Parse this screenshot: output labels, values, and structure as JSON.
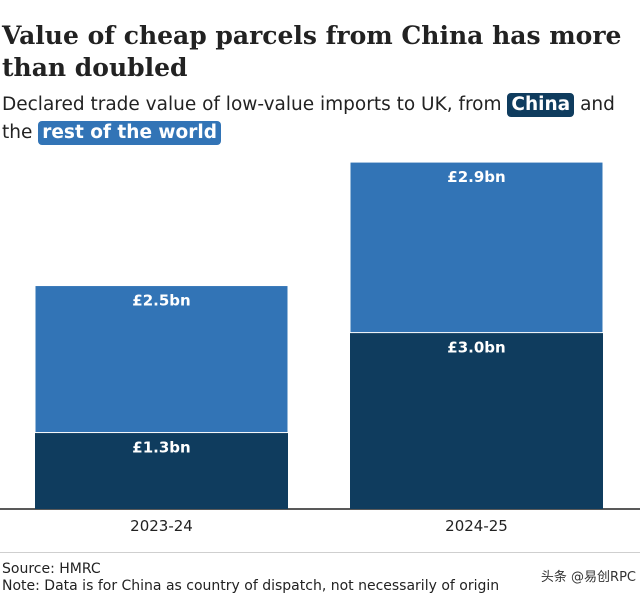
{
  "title": "Value of cheap parcels from China has more than doubled",
  "subtitle": {
    "part1": "Declared trade value of low-value imports to UK, from",
    "china": "China",
    "part2": "and the",
    "rest": "rest of the world"
  },
  "colors": {
    "china": "#0f3c5e",
    "rest": "#3274b6"
  },
  "chart_data": {
    "type": "bar",
    "stacked": true,
    "categories": [
      "2023-24",
      "2024-25"
    ],
    "series": [
      {
        "name": "China",
        "values": [
          1.3,
          3.0
        ],
        "labels": [
          "£1.3bn",
          "£3.0bn"
        ]
      },
      {
        "name": "rest of the world",
        "values": [
          2.5,
          2.9
        ],
        "labels": [
          "£2.5bn",
          "£2.9bn"
        ]
      }
    ],
    "unit": "£bn",
    "ylim": [
      0,
      6
    ]
  },
  "source": "Source: HMRC",
  "note": "Note: Data is for China as country of dispatch, not necessarily of origin",
  "watermark": "头条 @易创RPC"
}
